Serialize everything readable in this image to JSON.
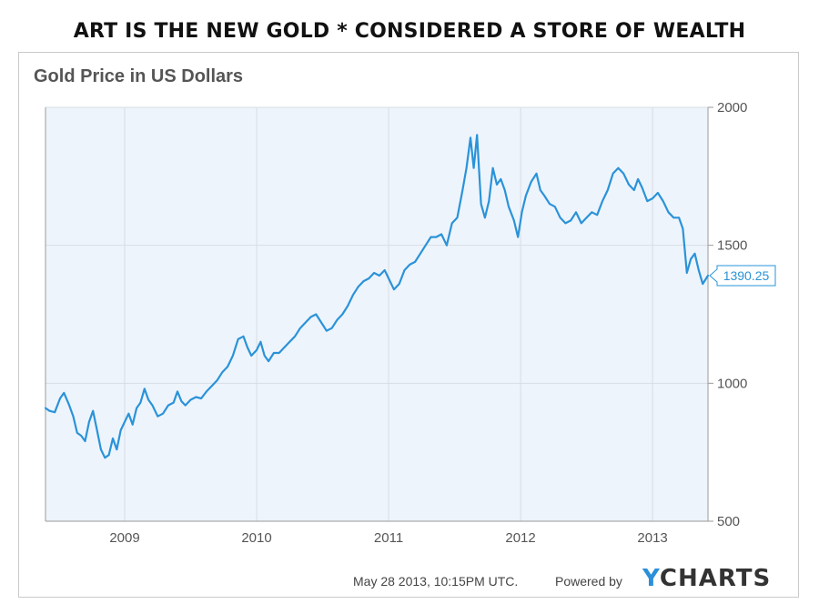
{
  "headline": "ART IS THE NEW GOLD * CONSIDERED A STORE OF WEALTH",
  "chart_data": {
    "type": "line",
    "title": "Gold Price in US Dollars",
    "xlabel": "",
    "ylabel": "",
    "x_ticks": [
      "2009",
      "2010",
      "2011",
      "2012",
      "2013"
    ],
    "y_ticks": [
      2000,
      1500,
      1000,
      500
    ],
    "xlim": [
      2008.4,
      2013.42
    ],
    "ylim": [
      500,
      2000
    ],
    "grid": true,
    "last_value_label": "1390.25",
    "series": [
      {
        "color": "#2a93d8",
        "points": [
          [
            2008.4,
            910
          ],
          [
            2008.43,
            900
          ],
          [
            2008.47,
            895
          ],
          [
            2008.51,
            945
          ],
          [
            2008.54,
            965
          ],
          [
            2008.58,
            920
          ],
          [
            2008.61,
            880
          ],
          [
            2008.64,
            820
          ],
          [
            2008.67,
            810
          ],
          [
            2008.7,
            790
          ],
          [
            2008.73,
            860
          ],
          [
            2008.76,
            900
          ],
          [
            2008.79,
            830
          ],
          [
            2008.82,
            760
          ],
          [
            2008.85,
            730
          ],
          [
            2008.88,
            740
          ],
          [
            2008.91,
            800
          ],
          [
            2008.94,
            760
          ],
          [
            2008.97,
            830
          ],
          [
            2009.0,
            860
          ],
          [
            2009.03,
            890
          ],
          [
            2009.06,
            850
          ],
          [
            2009.09,
            910
          ],
          [
            2009.12,
            930
          ],
          [
            2009.15,
            980
          ],
          [
            2009.18,
            940
          ],
          [
            2009.21,
            920
          ],
          [
            2009.25,
            880
          ],
          [
            2009.29,
            890
          ],
          [
            2009.33,
            920
          ],
          [
            2009.37,
            930
          ],
          [
            2009.4,
            970
          ],
          [
            2009.43,
            935
          ],
          [
            2009.46,
            920
          ],
          [
            2009.5,
            940
          ],
          [
            2009.54,
            950
          ],
          [
            2009.58,
            945
          ],
          [
            2009.62,
            970
          ],
          [
            2009.66,
            990
          ],
          [
            2009.7,
            1010
          ],
          [
            2009.74,
            1040
          ],
          [
            2009.78,
            1060
          ],
          [
            2009.82,
            1100
          ],
          [
            2009.86,
            1160
          ],
          [
            2009.9,
            1170
          ],
          [
            2009.93,
            1130
          ],
          [
            2009.96,
            1100
          ],
          [
            2010.0,
            1120
          ],
          [
            2010.03,
            1150
          ],
          [
            2010.06,
            1100
          ],
          [
            2010.09,
            1080
          ],
          [
            2010.13,
            1110
          ],
          [
            2010.17,
            1110
          ],
          [
            2010.21,
            1130
          ],
          [
            2010.25,
            1150
          ],
          [
            2010.29,
            1170
          ],
          [
            2010.33,
            1200
          ],
          [
            2010.37,
            1220
          ],
          [
            2010.41,
            1240
          ],
          [
            2010.45,
            1250
          ],
          [
            2010.49,
            1220
          ],
          [
            2010.53,
            1190
          ],
          [
            2010.57,
            1200
          ],
          [
            2010.61,
            1230
          ],
          [
            2010.65,
            1250
          ],
          [
            2010.69,
            1280
          ],
          [
            2010.73,
            1320
          ],
          [
            2010.77,
            1350
          ],
          [
            2010.81,
            1370
          ],
          [
            2010.85,
            1380
          ],
          [
            2010.89,
            1400
          ],
          [
            2010.93,
            1390
          ],
          [
            2010.97,
            1410
          ],
          [
            2011.0,
            1380
          ],
          [
            2011.04,
            1340
          ],
          [
            2011.08,
            1360
          ],
          [
            2011.12,
            1410
          ],
          [
            2011.16,
            1430
          ],
          [
            2011.2,
            1440
          ],
          [
            2011.24,
            1470
          ],
          [
            2011.28,
            1500
          ],
          [
            2011.32,
            1530
          ],
          [
            2011.36,
            1530
          ],
          [
            2011.4,
            1540
          ],
          [
            2011.44,
            1500
          ],
          [
            2011.48,
            1580
          ],
          [
            2011.52,
            1600
          ],
          [
            2011.56,
            1700
          ],
          [
            2011.59,
            1780
          ],
          [
            2011.62,
            1890
          ],
          [
            2011.645,
            1780
          ],
          [
            2011.67,
            1900
          ],
          [
            2011.7,
            1650
          ],
          [
            2011.73,
            1600
          ],
          [
            2011.76,
            1660
          ],
          [
            2011.79,
            1780
          ],
          [
            2011.82,
            1720
          ],
          [
            2011.85,
            1740
          ],
          [
            2011.88,
            1700
          ],
          [
            2011.91,
            1640
          ],
          [
            2011.95,
            1590
          ],
          [
            2011.98,
            1530
          ],
          [
            2012.01,
            1620
          ],
          [
            2012.04,
            1680
          ],
          [
            2012.08,
            1730
          ],
          [
            2012.12,
            1760
          ],
          [
            2012.15,
            1700
          ],
          [
            2012.18,
            1680
          ],
          [
            2012.22,
            1650
          ],
          [
            2012.26,
            1640
          ],
          [
            2012.3,
            1600
          ],
          [
            2012.34,
            1580
          ],
          [
            2012.38,
            1590
          ],
          [
            2012.42,
            1620
          ],
          [
            2012.46,
            1580
          ],
          [
            2012.5,
            1600
          ],
          [
            2012.54,
            1620
          ],
          [
            2012.58,
            1610
          ],
          [
            2012.62,
            1660
          ],
          [
            2012.66,
            1700
          ],
          [
            2012.7,
            1760
          ],
          [
            2012.74,
            1780
          ],
          [
            2012.78,
            1760
          ],
          [
            2012.82,
            1720
          ],
          [
            2012.86,
            1700
          ],
          [
            2012.89,
            1740
          ],
          [
            2012.92,
            1710
          ],
          [
            2012.96,
            1660
          ],
          [
            2013.0,
            1670
          ],
          [
            2013.04,
            1690
          ],
          [
            2013.08,
            1660
          ],
          [
            2013.12,
            1620
          ],
          [
            2013.16,
            1600
          ],
          [
            2013.2,
            1600
          ],
          [
            2013.23,
            1560
          ],
          [
            2013.26,
            1400
          ],
          [
            2013.29,
            1450
          ],
          [
            2013.32,
            1470
          ],
          [
            2013.35,
            1410
          ],
          [
            2013.38,
            1360
          ],
          [
            2013.42,
            1390.25
          ]
        ]
      }
    ]
  },
  "footer": {
    "timestamp": "May 28 2013, 10:15PM UTC.",
    "powered_by": "Powered by",
    "brand_y": "Y",
    "brand_rest": "CHARTS"
  },
  "colors": {
    "plot_background": "#eef4fc",
    "line": "#2a93d8",
    "grid": "#d8dde3",
    "axis": "#9a9a9a",
    "brand_accent": "#2b8fd9"
  }
}
